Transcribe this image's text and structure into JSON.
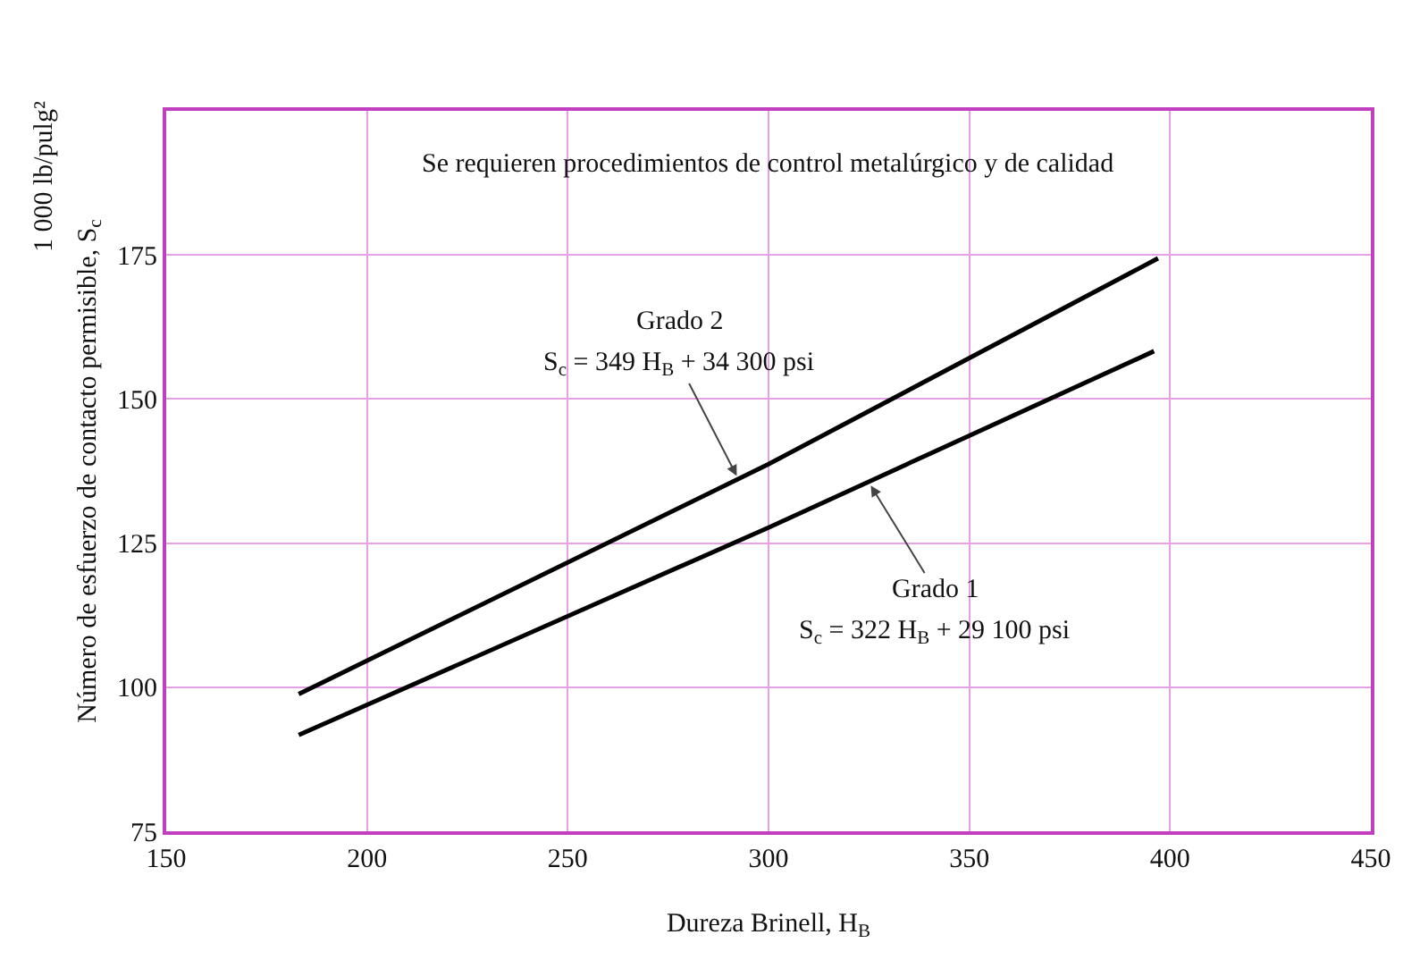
{
  "chart_data": {
    "type": "line",
    "xlabel": "Dureza Brinell, H$_{B}$",
    "ylabel": "Número de esfuerzo de contacto permisible, S$_{c}$",
    "xlim": [
      150,
      450
    ],
    "xticks": [
      150,
      200,
      250,
      300,
      350,
      400,
      450
    ],
    "ylim": [
      75,
      200
    ],
    "yticks": [
      75,
      100,
      125,
      150,
      175,
      {
        "value": 200,
        "label": null
      }
    ],
    "grid": true,
    "marker": "none",
    "line_style": "solid",
    "series": [
      {
        "color": "#000000",
        "x": [
          183,
          300,
          397
        ],
        "values": [
          98.8,
          138.7,
          174.4
        ]
      },
      {
        "color": "#000000",
        "x": [
          183,
          300,
          396
        ],
        "values": [
          91.7,
          127.7,
          158.3
        ]
      }
    ],
    "annotations": [
      "Se requieren procedimientos de control metalúrgico y de calidad",
      "1 000 lb/pulg²",
      "Grado 2",
      {
        "text": "S$_{c}$ = 349 H$_{B}$ + 34 300 psi",
        "x": 292.5,
        "y": 136.1
      },
      {
        "text": "Grado 1",
        "x": 325,
        "y": 135.5
      },
      "S$_{c}$ = 322 H$_{B}$ + 29 100 psi"
    ]
  }
}
